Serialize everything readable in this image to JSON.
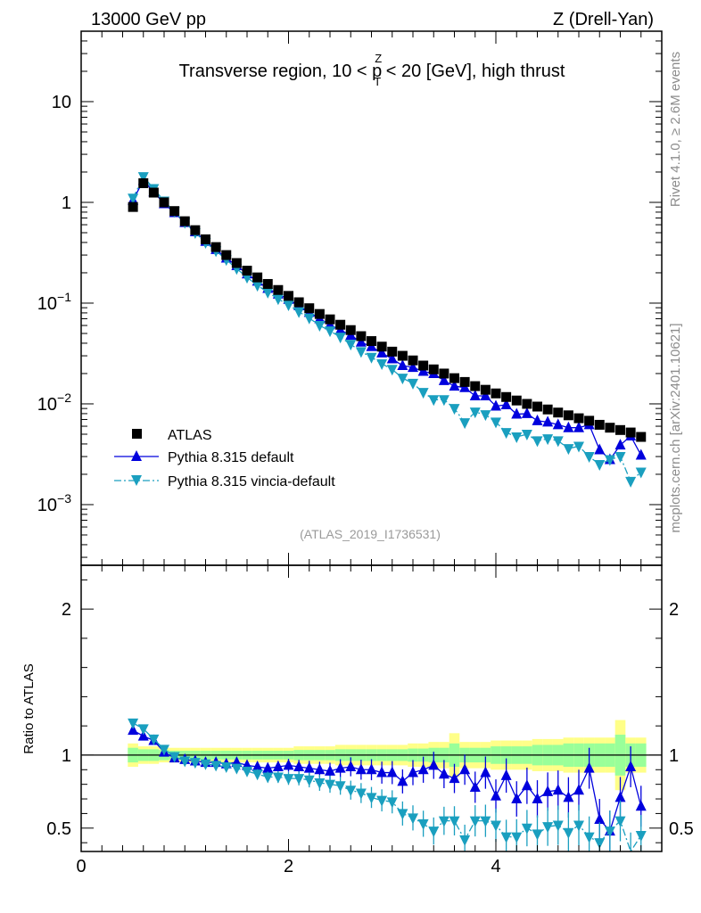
{
  "header": {
    "left": "13000 GeV pp",
    "right": "Z (Drell-Yan)"
  },
  "side_labels": {
    "rivet": "Rivet 4.1.0, ≥ 2.6M events",
    "mcplots": "mcplots.cern.ch [arXiv:2401.10621]"
  },
  "colors": {
    "atlas": "#000000",
    "pythia_default": "#0000dd",
    "vincia": "#1a9fbf",
    "band_inner": "#99ff99",
    "band_outer": "#ffff88"
  },
  "chart_data": [
    {
      "type": "scatter",
      "panel": "main",
      "title": "Transverse region, 10 < p_T^Z < 20 [GeV], high thrust",
      "title_parts": {
        "pre": "Transverse region, 10 < p",
        "sup": "Z",
        "sub": "T",
        "post": " < 20 [GeV], high thrust"
      },
      "watermark": "(ATLAS_2019_I1736531)",
      "yscale": "log",
      "xlim": [
        0,
        5.6
      ],
      "ylim": [
        0.00025,
        50
      ],
      "y_ticks": [
        {
          "value": 10,
          "label": "10",
          "exp": ""
        },
        {
          "value": 1,
          "label": "1",
          "exp": ""
        },
        {
          "value": 0.1,
          "label": "10",
          "exp": "−1"
        },
        {
          "value": 0.01,
          "label": "10",
          "exp": "−2"
        },
        {
          "value": 0.001,
          "label": "10",
          "exp": "−3"
        }
      ],
      "x": [
        0.5,
        0.6,
        0.7,
        0.8,
        0.9,
        1.0,
        1.1,
        1.2,
        1.3,
        1.4,
        1.5,
        1.6,
        1.7,
        1.8,
        1.9,
        2.0,
        2.1,
        2.2,
        2.3,
        2.4,
        2.5,
        2.6,
        2.7,
        2.8,
        2.9,
        3.0,
        3.1,
        3.2,
        3.3,
        3.4,
        3.5,
        3.6,
        3.7,
        3.8,
        3.9,
        4.0,
        4.1,
        4.2,
        4.3,
        4.4,
        4.5,
        4.6,
        4.7,
        4.8,
        4.9,
        5.0,
        5.1,
        5.2,
        5.3,
        5.4
      ],
      "legend": [
        {
          "label": "ATLAS",
          "key": "atlas"
        },
        {
          "label": "Pythia 8.315 default",
          "key": "pythia_default"
        },
        {
          "label": "Pythia 8.315 vincia-default",
          "key": "vincia"
        }
      ],
      "series": [
        {
          "name": "ATLAS",
          "key": "atlas",
          "marker": "square",
          "values": [
            0.9,
            1.55,
            1.25,
            1.0,
            0.82,
            0.65,
            0.53,
            0.43,
            0.36,
            0.3,
            0.25,
            0.21,
            0.18,
            0.155,
            0.135,
            0.118,
            0.102,
            0.089,
            0.078,
            0.069,
            0.061,
            0.054,
            0.047,
            0.042,
            0.037,
            0.033,
            0.03,
            0.027,
            0.024,
            0.022,
            0.02,
            0.018,
            0.0165,
            0.015,
            0.0138,
            0.0127,
            0.0117,
            0.0108,
            0.01,
            0.0094,
            0.0088,
            0.0082,
            0.0077,
            0.0072,
            0.0068,
            0.0062,
            0.0058,
            0.0055,
            0.0052,
            0.0047
          ]
        },
        {
          "name": "Pythia 8.315 default",
          "key": "pythia_default",
          "marker": "triangle-up",
          "line": "solid",
          "values": [
            1.05,
            1.65,
            1.27,
            0.97,
            0.79,
            0.63,
            0.51,
            0.41,
            0.34,
            0.28,
            0.235,
            0.195,
            0.165,
            0.14,
            0.123,
            0.109,
            0.094,
            0.081,
            0.07,
            0.061,
            0.054,
            0.048,
            0.041,
            0.037,
            0.032,
            0.028,
            0.024,
            0.023,
            0.021,
            0.02,
            0.017,
            0.015,
            0.0145,
            0.012,
            0.012,
            0.0095,
            0.0098,
            0.0079,
            0.008,
            0.0068,
            0.0066,
            0.0062,
            0.0058,
            0.0058,
            0.0062,
            0.0035,
            0.0028,
            0.0039,
            0.0048,
            0.0031
          ]
        },
        {
          "name": "Pythia 8.315 vincia-default",
          "key": "vincia",
          "marker": "triangle-down",
          "line": "dash-dot",
          "values": [
            1.1,
            1.8,
            1.37,
            1.03,
            0.81,
            0.63,
            0.5,
            0.4,
            0.33,
            0.27,
            0.22,
            0.18,
            0.15,
            0.128,
            0.11,
            0.096,
            0.082,
            0.071,
            0.06,
            0.053,
            0.046,
            0.039,
            0.033,
            0.029,
            0.025,
            0.022,
            0.018,
            0.016,
            0.013,
            0.011,
            0.011,
            0.009,
            0.0065,
            0.0083,
            0.0078,
            0.0066,
            0.0052,
            0.0047,
            0.005,
            0.0043,
            0.0045,
            0.0043,
            0.0036,
            0.0038,
            0.003,
            0.0025,
            0.0028,
            0.003,
            0.0017,
            0.0021
          ]
        }
      ]
    },
    {
      "type": "line",
      "panel": "ratio",
      "ylabel": "Ratio to ATLAS",
      "xlim": [
        0,
        5.6
      ],
      "ylim": [
        0.34,
        2.3
      ],
      "reference": 1,
      "y_ticks": [
        {
          "value": 2,
          "label": "2"
        },
        {
          "value": 1,
          "label": "1"
        },
        {
          "value": 0.5,
          "label": "0.5"
        }
      ],
      "x_ticks": [
        {
          "value": 0,
          "label": "0"
        },
        {
          "value": 2,
          "label": "2"
        },
        {
          "value": 4,
          "label": "4"
        }
      ],
      "x": [
        0.5,
        0.6,
        0.7,
        0.8,
        0.9,
        1.0,
        1.1,
        1.2,
        1.3,
        1.4,
        1.5,
        1.6,
        1.7,
        1.8,
        1.9,
        2.0,
        2.1,
        2.2,
        2.3,
        2.4,
        2.5,
        2.6,
        2.7,
        2.8,
        2.9,
        3.0,
        3.1,
        3.2,
        3.3,
        3.4,
        3.5,
        3.6,
        3.7,
        3.8,
        3.9,
        4.0,
        4.1,
        4.2,
        4.3,
        4.4,
        4.5,
        4.6,
        4.7,
        4.8,
        4.9,
        5.0,
        5.1,
        5.2,
        5.3,
        5.4
      ],
      "band_inner_halfwidth": [
        0.05,
        0.04,
        0.04,
        0.035,
        0.03,
        0.03,
        0.03,
        0.03,
        0.03,
        0.03,
        0.03,
        0.03,
        0.03,
        0.03,
        0.03,
        0.03,
        0.035,
        0.035,
        0.035,
        0.035,
        0.04,
        0.04,
        0.04,
        0.04,
        0.04,
        0.04,
        0.04,
        0.045,
        0.045,
        0.05,
        0.05,
        0.08,
        0.05,
        0.05,
        0.05,
        0.06,
        0.06,
        0.06,
        0.06,
        0.07,
        0.07,
        0.07,
        0.08,
        0.08,
        0.08,
        0.08,
        0.08,
        0.14,
        0.08,
        0.08
      ],
      "band_outer_halfwidth": [
        0.08,
        0.06,
        0.06,
        0.05,
        0.05,
        0.05,
        0.05,
        0.05,
        0.05,
        0.05,
        0.05,
        0.05,
        0.05,
        0.05,
        0.05,
        0.05,
        0.06,
        0.06,
        0.06,
        0.06,
        0.07,
        0.07,
        0.07,
        0.07,
        0.07,
        0.07,
        0.07,
        0.08,
        0.08,
        0.09,
        0.09,
        0.15,
        0.09,
        0.09,
        0.09,
        0.1,
        0.1,
        0.1,
        0.1,
        0.11,
        0.11,
        0.11,
        0.12,
        0.12,
        0.12,
        0.12,
        0.12,
        0.24,
        0.12,
        0.12
      ],
      "series": [
        {
          "name": "Pythia 8.315 default",
          "key": "pythia_default",
          "marker": "triangle-up",
          "values": [
            1.17,
            1.13,
            1.1,
            1.02,
            0.98,
            0.97,
            0.96,
            0.95,
            0.95,
            0.94,
            0.95,
            0.93,
            0.92,
            0.91,
            0.92,
            0.93,
            0.92,
            0.91,
            0.9,
            0.89,
            0.91,
            0.92,
            0.9,
            0.9,
            0.88,
            0.88,
            0.82,
            0.88,
            0.9,
            0.93,
            0.87,
            0.84,
            0.9,
            0.78,
            0.88,
            0.72,
            0.86,
            0.7,
            0.79,
            0.7,
            0.75,
            0.76,
            0.71,
            0.76,
            0.91,
            0.56,
            0.48,
            0.71,
            0.92,
            0.65
          ]
        },
        {
          "name": "Pythia 8.315 vincia-default",
          "key": "vincia",
          "marker": "triangle-down",
          "values": [
            1.22,
            1.18,
            1.11,
            1.04,
            0.99,
            0.96,
            0.95,
            0.94,
            0.93,
            0.92,
            0.91,
            0.89,
            0.87,
            0.85,
            0.85,
            0.84,
            0.84,
            0.83,
            0.81,
            0.8,
            0.79,
            0.76,
            0.74,
            0.71,
            0.69,
            0.68,
            0.6,
            0.57,
            0.53,
            0.48,
            0.55,
            0.55,
            0.42,
            0.55,
            0.55,
            0.52,
            0.44,
            0.44,
            0.5,
            0.46,
            0.51,
            0.52,
            0.47,
            0.52,
            0.44,
            0.4,
            0.48,
            0.55,
            0.33,
            0.45
          ]
        }
      ]
    }
  ]
}
